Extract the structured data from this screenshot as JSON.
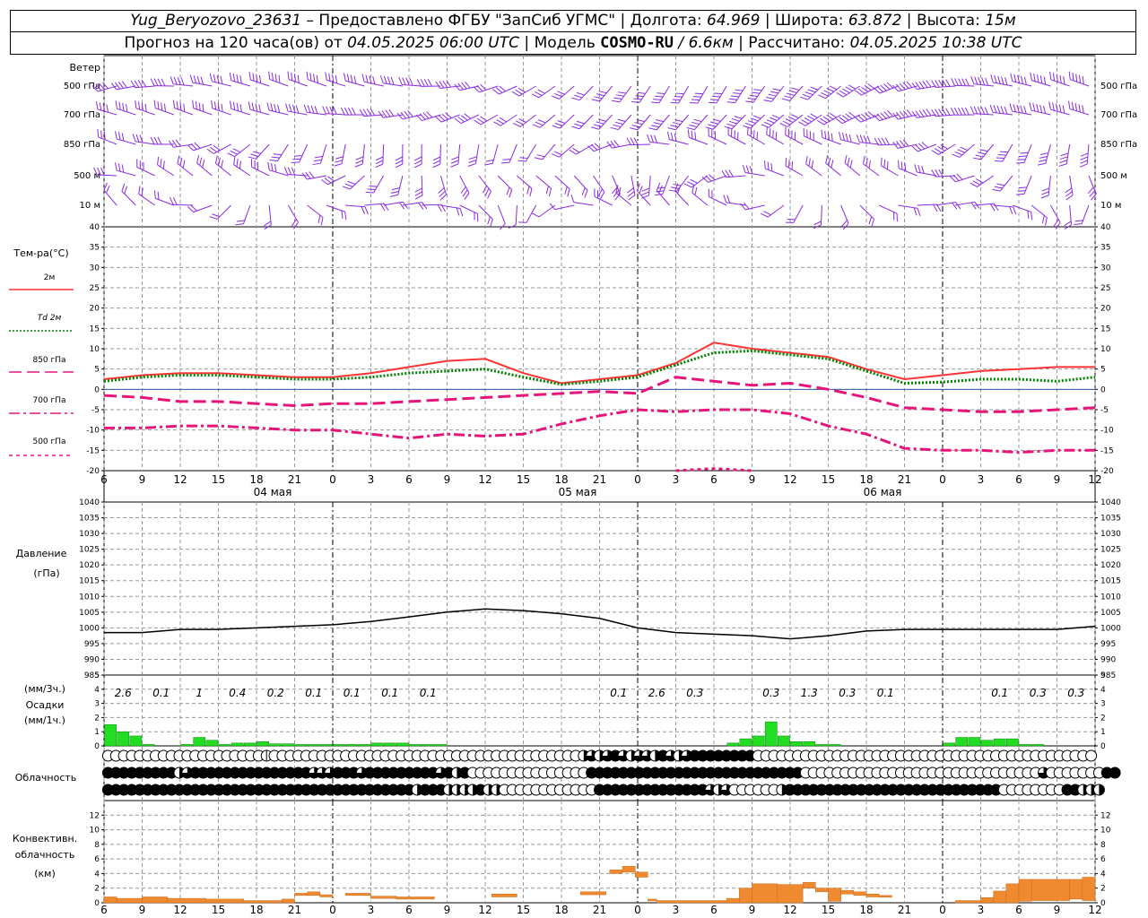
{
  "header": {
    "station": "Yug_Beryozovo_23631",
    "dash": " – ",
    "provider": "Предоставлено ФГБУ \"ЗапСиб УГМС\"",
    "sep": " | ",
    "lon_label": "Долгота: ",
    "lon": "64.969",
    "lat_label": "Широта: ",
    "lat": "63.872",
    "alt_label": "Высота: ",
    "alt": "15м",
    "forecast_label": "Прогноз на 120 часа(ов) от ",
    "forecast_start": "04.05.2025 06:00 UTC",
    "model_label": "Модель ",
    "model": "COSMO-RU",
    "resolution": " / 6.6км",
    "computed_label": "Рассчитано: ",
    "computed": "04.05.2025 10:38 UTC"
  },
  "colors": {
    "wind": "#8a2be2",
    "t2m": "#ff3333",
    "td2m": "#008000",
    "t850": "#e6157a",
    "pressure": "#000000",
    "precip": "#22dd22",
    "convective": "#f08a30",
    "axis": "#000000",
    "grid": "#999999"
  },
  "chart_data": [
    {
      "type": "wind_barbs",
      "title": "Ветер",
      "levels": [
        "500 гПа",
        "700 гПа",
        "850 гПа",
        "500 м",
        "10 м"
      ]
    },
    {
      "type": "line",
      "ylabel": "Тем-ра(°С)",
      "ylim": [
        -20,
        40
      ],
      "yticks": [
        40,
        35,
        30,
        25,
        20,
        15,
        10,
        5,
        0,
        -5,
        -10,
        -15,
        -20
      ],
      "x_hours": [
        0,
        3,
        6,
        9,
        12,
        15,
        18,
        21,
        24,
        27,
        30,
        33,
        36,
        39,
        42,
        45,
        48,
        51,
        54,
        57,
        60,
        63,
        66,
        69,
        72,
        75,
        78
      ],
      "series": [
        {
          "name": "2м",
          "color": "#ff3333",
          "style": "solid",
          "values": [
            2.5,
            3.5,
            4,
            4,
            3.5,
            3,
            3,
            4,
            5.5,
            7,
            7.5,
            4,
            1.5,
            2.5,
            3.5,
            6.5,
            11.5,
            10,
            9,
            8,
            5,
            2.5,
            3.5,
            4.5,
            5,
            5.5,
            5.5
          ]
        },
        {
          "name": "Td 2м",
          "color": "#008000",
          "style": "dotted",
          "values": [
            2,
            3,
            3.5,
            3.5,
            3,
            2.5,
            2.5,
            3,
            4,
            4.5,
            5,
            3,
            1.2,
            2,
            3,
            6,
            9,
            9.5,
            8.5,
            7.5,
            4.5,
            1.5,
            1.8,
            2.5,
            2.5,
            2,
            3
          ]
        },
        {
          "name": "850 гПа",
          "color": "#e6157a",
          "style": "dash",
          "values": [
            -1.5,
            -2,
            -3,
            -3,
            -3.5,
            -4,
            -3.5,
            -3.5,
            -3,
            -2.5,
            -2,
            -1.5,
            -1,
            -0.5,
            -1,
            3,
            2,
            1,
            1.5,
            0,
            -2,
            -4.5,
            -5,
            -5.5,
            -5.5,
            -5,
            -4.5
          ]
        },
        {
          "name": "700 гПа",
          "color": "#e6157a",
          "style": "dashdot",
          "values": [
            -9.5,
            -9.5,
            -9,
            -9,
            -9.5,
            -10,
            -10,
            -11,
            -12,
            -11,
            -11.5,
            -11,
            -8.5,
            -6.5,
            -5,
            -5.5,
            -5,
            -5,
            -6,
            -9,
            -11,
            -14.5,
            -15,
            -15,
            -15.5,
            -15,
            -15
          ]
        },
        {
          "name": "500 гПа",
          "color": "#e6157a",
          "style": "dashed",
          "values": [
            null,
            null,
            null,
            null,
            null,
            null,
            null,
            null,
            null,
            null,
            null,
            null,
            null,
            null,
            null,
            -20,
            -19.5,
            -20,
            null,
            null,
            null,
            null,
            null,
            null,
            null,
            null,
            null
          ]
        }
      ],
      "day_labels": [
        "04 мая",
        "05 мая",
        "06 мая"
      ]
    },
    {
      "type": "line",
      "ylabel": "Давление",
      "yunit": "(гПа)",
      "ylim": [
        985,
        1040
      ],
      "yticks": [
        1040,
        1035,
        1030,
        1025,
        1020,
        1015,
        1010,
        1005,
        1000,
        995,
        990,
        985
      ],
      "x_hours": [
        0,
        3,
        6,
        9,
        12,
        15,
        18,
        21,
        24,
        27,
        30,
        33,
        36,
        39,
        42,
        45,
        48,
        51,
        54,
        57,
        60,
        63,
        66,
        69,
        72,
        75,
        78
      ],
      "series": [
        {
          "name": "",
          "color": "#000000",
          "values": [
            998.5,
            998.5,
            999.5,
            999.5,
            1000,
            1000.5,
            1001,
            1002,
            1003.5,
            1005,
            1006,
            1005.5,
            1004.5,
            1003,
            1000,
            998.5,
            998,
            997.5,
            996.5,
            997.5,
            999,
            999.5,
            999.5,
            999.5,
            999.5,
            999.5,
            1000.5
          ]
        }
      ]
    },
    {
      "type": "bar",
      "ylabel": "Осадки",
      "ylabel_top": "(мм/3ч.)",
      "ylabel_bottom": "(мм/1ч.)",
      "ylim": [
        0,
        5
      ],
      "yticks": [
        5,
        4,
        3,
        2,
        1,
        0
      ],
      "totals_3h": [
        {
          "hour": 1.5,
          "text": "2.6"
        },
        {
          "hour": 4.5,
          "text": "0.1"
        },
        {
          "hour": 7.5,
          "text": "1"
        },
        {
          "hour": 10.5,
          "text": "0.4"
        },
        {
          "hour": 13.5,
          "text": "0.2"
        },
        {
          "hour": 16.5,
          "text": "0.1"
        },
        {
          "hour": 19.5,
          "text": "0.1"
        },
        {
          "hour": 22.5,
          "text": "0.1"
        },
        {
          "hour": 25.5,
          "text": "0.1"
        },
        {
          "hour": 40.5,
          "text": "0.1"
        },
        {
          "hour": 43.5,
          "text": "2.6"
        },
        {
          "hour": 46.5,
          "text": "0.3"
        },
        {
          "hour": 52.5,
          "text": "0.3"
        },
        {
          "hour": 55.5,
          "text": "1.3"
        },
        {
          "hour": 58.5,
          "text": "0.3"
        },
        {
          "hour": 61.5,
          "text": "0.1"
        },
        {
          "hour": 70.5,
          "text": "0.1"
        },
        {
          "hour": 73.5,
          "text": "0.3"
        },
        {
          "hour": 76.5,
          "text": "0.3"
        }
      ],
      "hourly": [
        1.5,
        1,
        0.7,
        0.05,
        0,
        0,
        0.05,
        0.6,
        0.4,
        0.1,
        0.2,
        0.2,
        0.3,
        0.15,
        0.15,
        0.1,
        0.1,
        0.05,
        0.05,
        0.05,
        0.05,
        0.2,
        0.2,
        0.2,
        0.1,
        0.1,
        0.1,
        0,
        0,
        0,
        0,
        0,
        0,
        0,
        0,
        0,
        0,
        0,
        0,
        0,
        0,
        0,
        0,
        0,
        0,
        0,
        0,
        0,
        0,
        0.2,
        0.5,
        0.7,
        1.7,
        0.7,
        0.3,
        0.3,
        0.1,
        0.05,
        0,
        0,
        0,
        0,
        0,
        0,
        0,
        0,
        0.2,
        0.6,
        0.6,
        0.4,
        0.5,
        0.5,
        0.05,
        0.05,
        0,
        0,
        0,
        0,
        0
      ],
      "bar_color": "#22dd22"
    },
    {
      "type": "cloud_symbols",
      "ylabel": "Облачность",
      "rows": [
        "OOOOOOOOOOOOOOOOOOOOCOOOOOOOOOOOOOOOOOOOOOOOOOOOOOOOOOOOOOOOHTHTFTHTTHFTHTFFFFFFFFOOOOOOOOOOOOOOOOOOOOOOOOOOOOOOOOOOOOOOOOOOO",
        "FFFFFFFFFHTFFFFFFFFFFFFFFFTTTFFFTFFFFFFFFFTFHFOOOOOOOOOOOOOOOFFFFFFFFFFFFFFFFFFFFFFFFFFFOOOOOOOOOOOOOOOOOOOOOOOOOOOOOOTOOOOOOOFF",
        "FFFFFFFFFFFFFFFFFFFFFFFFFFFFFFFFFFFFFFFHFFFHHHHFHHOOOOOOOOOOOOFFFFFFFFFFFFFFTHTOOOOOOHFFFFFFFFFFFFFFFFFFFFFFFFFFFOOOOOOOOFFHHH"
      ]
    },
    {
      "type": "bar",
      "ylabel": "Конвективн.",
      "ylabel2": "облачность",
      "yunit": "(км)",
      "ylim": [
        0,
        14
      ],
      "yticks": [
        12,
        10,
        8,
        6,
        4,
        2,
        0
      ],
      "segments": [
        {
          "h0": 0,
          "h1": 1,
          "base": 0,
          "top": 0.8
        },
        {
          "h0": 1,
          "h1": 3,
          "base": 0,
          "top": 0.6
        },
        {
          "h0": 3,
          "h1": 5,
          "base": 0,
          "top": 0.8
        },
        {
          "h0": 5,
          "h1": 8,
          "base": 0,
          "top": 0.6
        },
        {
          "h0": 8,
          "h1": 11,
          "base": 0,
          "top": 0.5
        },
        {
          "h0": 11,
          "h1": 14,
          "base": 0,
          "top": 0.3
        },
        {
          "h0": 14,
          "h1": 15,
          "base": 0,
          "top": 0.5
        },
        {
          "h0": 15,
          "h1": 16,
          "base": 1,
          "top": 1.3
        },
        {
          "h0": 16,
          "h1": 17,
          "base": 1,
          "top": 1.5
        },
        {
          "h0": 17,
          "h1": 18,
          "base": 0.8,
          "top": 1.1
        },
        {
          "h0": 19,
          "h1": 21,
          "base": 1,
          "top": 1.3
        },
        {
          "h0": 21,
          "h1": 23,
          "base": 0.6,
          "top": 0.9
        },
        {
          "h0": 23,
          "h1": 26,
          "base": 0.5,
          "top": 0.8
        },
        {
          "h0": 30.5,
          "h1": 32.5,
          "base": 0.8,
          "top": 1.2
        },
        {
          "h0": 37.5,
          "h1": 39.5,
          "base": 1.1,
          "top": 1.5
        },
        {
          "h0": 39.8,
          "h1": 40.8,
          "base": 4,
          "top": 4.5
        },
        {
          "h0": 40.8,
          "h1": 41.8,
          "base": 4.2,
          "top": 5
        },
        {
          "h0": 41.8,
          "h1": 42.8,
          "base": 3.5,
          "top": 4.2
        },
        {
          "h0": 42.8,
          "h1": 43.5,
          "base": 0.3,
          "top": 0.5
        },
        {
          "h0": 43.5,
          "h1": 49,
          "base": 0,
          "top": 0.3
        },
        {
          "h0": 49,
          "h1": 50,
          "base": 0,
          "top": 0.6
        },
        {
          "h0": 50,
          "h1": 51,
          "base": 0,
          "top": 2
        },
        {
          "h0": 51,
          "h1": 53,
          "base": 0,
          "top": 2.6
        },
        {
          "h0": 53,
          "h1": 55,
          "base": 0,
          "top": 2.5
        },
        {
          "h0": 55,
          "h1": 56,
          "base": 2,
          "top": 2.8
        },
        {
          "h0": 56,
          "h1": 57,
          "base": 1.5,
          "top": 2
        },
        {
          "h0": 57,
          "h1": 58,
          "base": 0.2,
          "top": 2
        },
        {
          "h0": 58,
          "h1": 59,
          "base": 1.2,
          "top": 1.7
        },
        {
          "h0": 59,
          "h1": 60,
          "base": 1,
          "top": 1.5
        },
        {
          "h0": 60,
          "h1": 61,
          "base": 0.8,
          "top": 1.2
        },
        {
          "h0": 61,
          "h1": 62,
          "base": 0.8,
          "top": 1
        },
        {
          "h0": 67,
          "h1": 69,
          "base": 0,
          "top": 0.3
        },
        {
          "h0": 69,
          "h1": 70,
          "base": 0,
          "top": 0.7
        },
        {
          "h0": 70,
          "h1": 71,
          "base": 0,
          "top": 1.6
        },
        {
          "h0": 71,
          "h1": 72,
          "base": 0,
          "top": 2.6
        },
        {
          "h0": 72,
          "h1": 73,
          "base": 0.2,
          "top": 3.2
        },
        {
          "h0": 73,
          "h1": 76,
          "base": 0.3,
          "top": 3.2
        },
        {
          "h0": 76,
          "h1": 77,
          "base": 0.5,
          "top": 3.2
        },
        {
          "h0": 77,
          "h1": 78,
          "base": 0.3,
          "top": 3.5
        }
      ],
      "bar_color": "#f08a30"
    }
  ],
  "x_axis": {
    "tick_labels": [
      "6",
      "9",
      "12",
      "15",
      "18",
      "21",
      "0",
      "3",
      "6",
      "9",
      "12",
      "15",
      "18",
      "21",
      "0",
      "3",
      "6",
      "9",
      "12",
      "15",
      "18",
      "21",
      "0",
      "3",
      "6",
      "9",
      "12"
    ],
    "day_labels": [
      "04 мая",
      "05 мая",
      "06 мая"
    ]
  }
}
